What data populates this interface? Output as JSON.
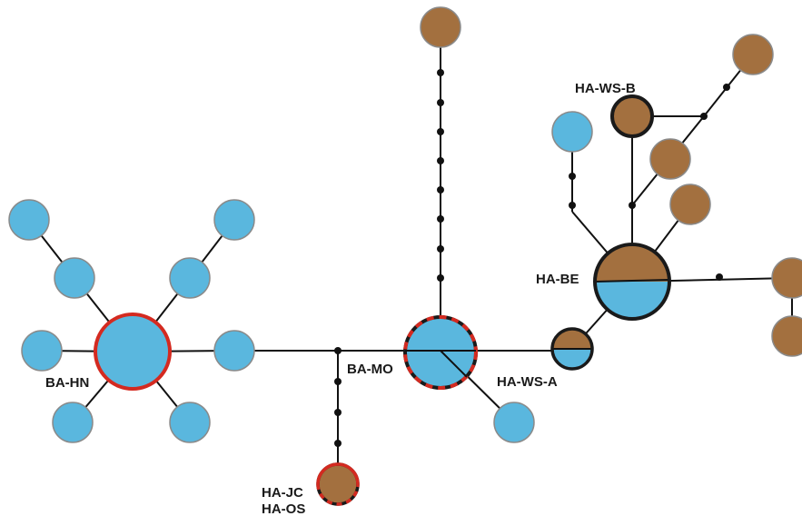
{
  "colors": {
    "edge": "#111111",
    "blue": "#5ab7de",
    "brown": "#a3703f",
    "ring_red": "#d42a20",
    "ring_dark": "#1a1a1a",
    "ring_gray": "#8a8a8a"
  },
  "labels": {
    "ba_hn": "BA-HN",
    "ba_mo": "BA-MO",
    "ha_ws_a": "HA-WS-A",
    "ha_ws_b": "HA-WS-B",
    "ha_be": "HA-BE",
    "ha_jc": "HA-JC",
    "ha_os": "HA-OS"
  }
}
